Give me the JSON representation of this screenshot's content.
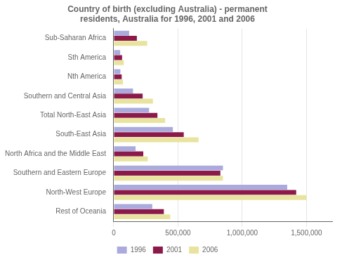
{
  "chart_data": {
    "type": "bar",
    "orientation": "horizontal",
    "title": "Country of birth (excluding Australia) - permanent\nresidents, Australia for 1996, 2001 and 2006",
    "categories": [
      "Sub-Saharan Africa",
      "Sth America",
      "Nth America",
      "Southern and Central Asia",
      "Total North-East Asia",
      "South-East Asia",
      "North Africa and the Middle East",
      "Southern and Eastern Europe",
      "North-West Europe",
      "Rest of Oceania"
    ],
    "series": [
      {
        "name": "1996",
        "color": "#aaaadd",
        "values": [
          120000,
          50000,
          52000,
          150000,
          275000,
          460000,
          170000,
          850000,
          1350000,
          300000
        ]
      },
      {
        "name": "2001",
        "color": "#8b1a4a",
        "values": [
          180000,
          65000,
          62000,
          225000,
          340000,
          545000,
          230000,
          830000,
          1420000,
          390000
        ]
      },
      {
        "name": "2006",
        "color": "#e8e4a0",
        "values": [
          260000,
          78000,
          72000,
          305000,
          400000,
          660000,
          265000,
          850000,
          1500000,
          440000
        ]
      }
    ],
    "xlim": [
      0,
      1700000
    ],
    "xticks": [
      0,
      {
        "value": 500000,
        "label": "500,000"
      },
      {
        "value": 1000000,
        "label": "1,000,000"
      },
      {
        "value": 1500000,
        "label": "1,500,000"
      }
    ],
    "grid": true,
    "legend": "bottom"
  }
}
